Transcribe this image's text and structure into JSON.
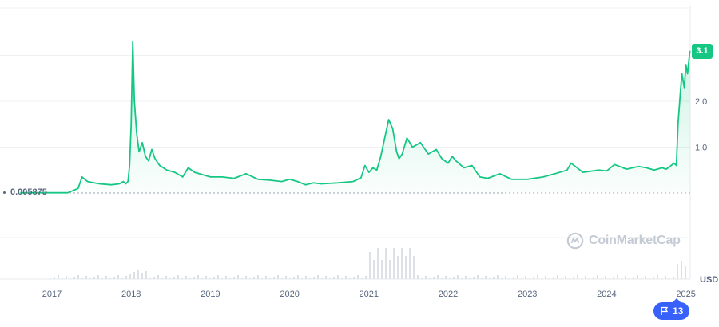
{
  "chart_data": {
    "type": "area",
    "currency": "USD",
    "current_price_label": "3.1",
    "baseline_label": "0.005875",
    "watermark": "CoinMarketCap",
    "events_count": "13",
    "x_ticks": [
      "2017",
      "2018",
      "2019",
      "2020",
      "2021",
      "2022",
      "2023",
      "2024",
      "2025"
    ],
    "y_ticks": [
      "1.0",
      "2.0",
      "3.1"
    ],
    "ylim": [
      0,
      3.2
    ],
    "line_color": "#16c784",
    "x": [
      2016.6,
      2017.0,
      2017.2,
      2017.33,
      2017.38,
      2017.45,
      2017.6,
      2017.75,
      2017.85,
      2017.9,
      2017.93,
      2017.96,
      2017.98,
      2018.0,
      2018.02,
      2018.04,
      2018.07,
      2018.1,
      2018.14,
      2018.18,
      2018.22,
      2018.26,
      2018.3,
      2018.36,
      2018.45,
      2018.55,
      2018.65,
      2018.72,
      2018.8,
      2018.9,
      2019.0,
      2019.15,
      2019.3,
      2019.45,
      2019.5,
      2019.6,
      2019.75,
      2019.9,
      2020.0,
      2020.1,
      2020.2,
      2020.3,
      2020.4,
      2020.6,
      2020.8,
      2020.9,
      2020.95,
      2021.0,
      2021.05,
      2021.1,
      2021.15,
      2021.2,
      2021.25,
      2021.3,
      2021.35,
      2021.38,
      2021.42,
      2021.48,
      2021.55,
      2021.65,
      2021.75,
      2021.85,
      2021.92,
      2022.0,
      2022.05,
      2022.1,
      2022.2,
      2022.3,
      2022.4,
      2022.5,
      2022.65,
      2022.8,
      2023.0,
      2023.2,
      2023.35,
      2023.5,
      2023.55,
      2023.7,
      2023.9,
      2024.0,
      2024.1,
      2024.25,
      2024.4,
      2024.5,
      2024.6,
      2024.7,
      2024.75,
      2024.8,
      2024.85,
      2024.88,
      2024.9,
      2024.93,
      2024.95,
      2024.98,
      2025.0,
      2025.02,
      2025.05
    ],
    "y": [
      0.006,
      0.006,
      0.006,
      0.1,
      0.35,
      0.25,
      0.2,
      0.18,
      0.2,
      0.25,
      0.2,
      0.25,
      0.6,
      1.5,
      3.3,
      2.0,
      1.3,
      0.9,
      1.1,
      0.8,
      0.7,
      0.95,
      0.75,
      0.6,
      0.5,
      0.45,
      0.35,
      0.55,
      0.45,
      0.4,
      0.35,
      0.35,
      0.32,
      0.42,
      0.38,
      0.3,
      0.28,
      0.25,
      0.3,
      0.25,
      0.18,
      0.22,
      0.2,
      0.22,
      0.25,
      0.33,
      0.6,
      0.45,
      0.55,
      0.5,
      0.8,
      1.2,
      1.6,
      1.4,
      0.9,
      0.75,
      0.85,
      1.2,
      1.0,
      1.1,
      0.85,
      0.95,
      0.75,
      0.65,
      0.8,
      0.7,
      0.55,
      0.6,
      0.35,
      0.32,
      0.42,
      0.3,
      0.3,
      0.35,
      0.42,
      0.5,
      0.65,
      0.45,
      0.5,
      0.48,
      0.62,
      0.52,
      0.58,
      0.55,
      0.5,
      0.55,
      0.52,
      0.58,
      0.65,
      0.6,
      1.5,
      2.2,
      2.6,
      2.3,
      2.8,
      2.6,
      3.1
    ]
  }
}
